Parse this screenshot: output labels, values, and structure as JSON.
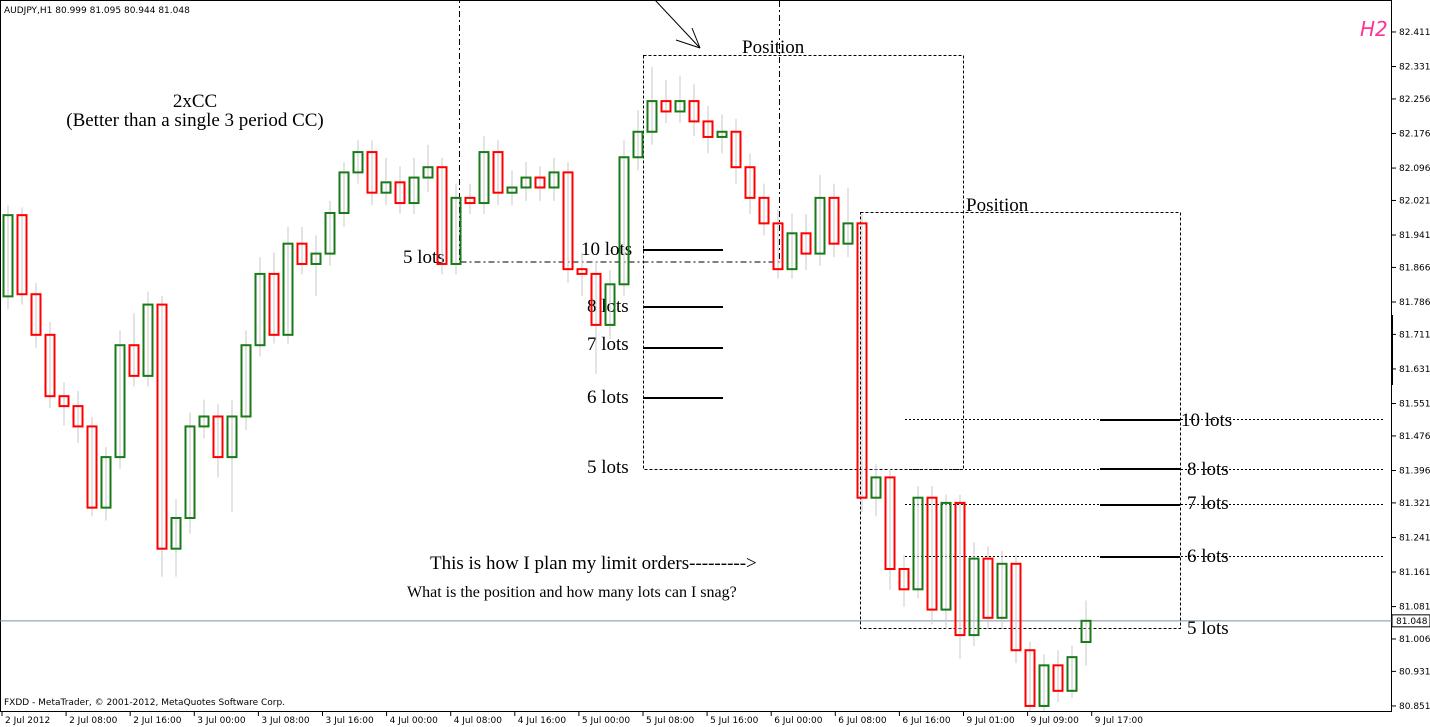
{
  "chart_data": {
    "type": "candlestick",
    "header": "AUDJPY,H1  80.999 81.095 80.944 81.048",
    "footer": "FXDD - MetaTrader, © 2001-2012, MetaQuotes Software Corp.",
    "corner_label": "H2",
    "up_color": "#1a7a1a",
    "down_color": "#ff0000",
    "last_price_color": "#7f8fa8",
    "open": [
      81.799,
      81.987,
      81.804,
      81.71,
      81.568,
      81.545,
      81.498,
      81.31,
      81.427,
      81.686,
      81.615,
      81.78,
      81.215,
      81.286,
      81.498,
      81.521,
      81.427,
      81.521,
      81.686,
      81.851,
      81.71,
      81.921,
      81.874,
      81.898,
      81.992,
      82.086,
      82.133,
      82.039,
      82.063,
      82.015,
      82.074,
      82.098,
      81.874,
      82.027,
      82.015,
      82.133,
      82.039,
      82.051,
      82.074,
      82.051,
      82.086,
      81.862,
      81.851,
      81.733,
      81.827,
      82.121,
      82.18,
      82.251,
      82.227,
      82.251,
      82.204,
      82.168,
      82.18,
      82.098,
      82.027,
      81.968,
      81.862,
      81.945,
      81.898,
      82.027,
      81.921,
      81.968,
      81.333,
      81.38,
      81.168,
      81.121,
      81.333,
      81.074,
      81.321,
      81.015,
      81.192,
      81.055,
      81.18,
      80.98,
      80.851,
      80.945,
      80.886,
      80.999
    ],
    "high": [
      82.01,
      82.005,
      81.83,
      81.74,
      81.6,
      81.58,
      81.52,
      81.45,
      81.72,
      81.76,
      81.81,
      81.8,
      81.33,
      81.53,
      81.56,
      81.55,
      81.56,
      81.72,
      81.89,
      81.9,
      81.96,
      81.96,
      81.94,
      82.02,
      82.11,
      82.16,
      82.16,
      82.12,
      82.1,
      82.12,
      82.15,
      82.12,
      82.06,
      82.06,
      82.17,
      82.16,
      82.09,
      82.11,
      82.1,
      82.12,
      82.11,
      81.9,
      81.88,
      81.86,
      82.16,
      82.23,
      82.33,
      82.3,
      82.31,
      82.29,
      82.24,
      82.22,
      82.21,
      82.13,
      82.06,
      82.0,
      81.99,
      81.99,
      82.08,
      82.06,
      82.05,
      81.99,
      81.41,
      81.4,
      81.2,
      81.36,
      81.36,
      81.34,
      81.34,
      81.23,
      81.22,
      81.21,
      81.2,
      81.0,
      80.97,
      80.98,
      80.99,
      81.095
    ],
    "low": [
      81.77,
      81.78,
      81.68,
      81.54,
      81.5,
      81.46,
      81.29,
      81.28,
      81.4,
      81.59,
      81.59,
      81.15,
      81.15,
      81.25,
      81.47,
      81.38,
      81.3,
      81.49,
      81.66,
      81.69,
      81.69,
      81.85,
      81.8,
      81.87,
      81.96,
      82.06,
      82.01,
      82.01,
      81.99,
      81.99,
      82.04,
      81.85,
      81.85,
      81.99,
      81.99,
      82.01,
      82.01,
      82.02,
      82.02,
      82.02,
      81.83,
      81.8,
      81.62,
      81.7,
      81.8,
      82.09,
      82.15,
      82.2,
      82.2,
      82.17,
      82.13,
      82.13,
      82.06,
      81.99,
      81.94,
      81.84,
      81.84,
      81.86,
      81.87,
      81.89,
      81.89,
      81.3,
      81.29,
      81.12,
      81.08,
      81.1,
      81.04,
      81.03,
      80.96,
      80.99,
      81.03,
      81.03,
      80.95,
      80.84,
      80.84,
      80.86,
      80.87,
      80.944
    ],
    "close": [
      81.987,
      81.804,
      81.71,
      81.568,
      81.545,
      81.498,
      81.31,
      81.427,
      81.686,
      81.615,
      81.78,
      81.215,
      81.286,
      81.498,
      81.521,
      81.427,
      81.521,
      81.686,
      81.851,
      81.71,
      81.921,
      81.874,
      81.898,
      81.992,
      82.086,
      82.133,
      82.039,
      82.063,
      82.015,
      82.074,
      82.098,
      81.874,
      82.027,
      82.015,
      82.133,
      82.039,
      82.051,
      82.074,
      82.051,
      82.086,
      81.862,
      81.851,
      81.733,
      81.827,
      82.121,
      82.18,
      82.251,
      82.227,
      82.251,
      82.204,
      82.168,
      82.18,
      82.098,
      82.027,
      81.968,
      81.862,
      81.945,
      81.898,
      82.027,
      81.921,
      81.968,
      81.333,
      81.38,
      81.168,
      81.121,
      81.333,
      81.074,
      81.321,
      81.015,
      81.192,
      81.055,
      81.18,
      80.98,
      80.851,
      80.945,
      80.886,
      80.964,
      81.048
    ],
    "last_price": 81.048,
    "ylim": [
      80.837,
      82.485
    ],
    "yticks": [
      82.411,
      82.331,
      82.256,
      82.176,
      82.096,
      82.021,
      81.941,
      81.866,
      81.786,
      81.711,
      81.631,
      81.551,
      81.476,
      81.396,
      81.321,
      81.241,
      81.161,
      81.081,
      81.006,
      80.931,
      80.851
    ],
    "x_tick_labels": [
      "2 Jul 2012",
      "2 Jul 08:00",
      "2 Jul 16:00",
      "3 Jul 00:00",
      "3 Jul 08:00",
      "3 Jul 16:00",
      "4 Jul 00:00",
      "4 Jul 08:00",
      "4 Jul 16:00",
      "5 Jul 00:00",
      "5 Jul 08:00",
      "5 Jul 16:00",
      "6 Jul 00:00",
      "6 Jul 08:00",
      "6 Jul 16:00",
      "9 Jul 01:00",
      "9 Jul 09:00",
      "9 Jul 17:00"
    ],
    "annotations": [
      "Position",
      "Position",
      "2xCC",
      "(Better than a single 3 period CC)",
      "5 lots",
      "10 lots",
      "8 lots",
      "7 lots",
      "6 lots",
      "5 lots",
      "10 lots",
      "8 lots",
      "7 lots",
      "6 lots",
      "5 lots",
      "This is how I plan my limit orders--------->",
      "What is the position and how many lots can I snag?"
    ]
  }
}
